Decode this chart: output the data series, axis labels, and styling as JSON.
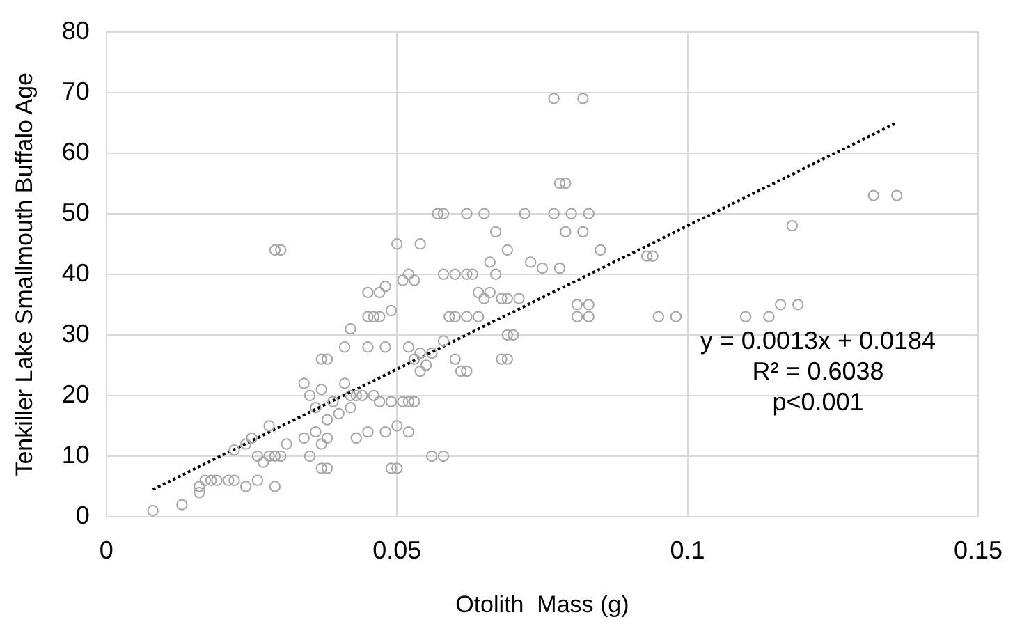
{
  "chart_data": {
    "type": "scatter",
    "xlabel": "Otolith  Mass (g)",
    "ylabel": "Tenkiller Lake Smallmouth Buffalo Age",
    "xlim": [
      0,
      0.15
    ],
    "xticks": [
      0,
      0.05,
      0.1,
      0.15
    ],
    "ylim": [
      0,
      80
    ],
    "yticks": [
      0,
      10,
      20,
      30,
      40,
      50,
      60,
      70,
      80
    ],
    "grid": true,
    "legend": false,
    "marker": "circle",
    "annotations": [
      "y = 0.0013x + 0.0184",
      "R² = 0.6038",
      "p<0.001"
    ],
    "series": [
      {
        "color": "#a6a6a6",
        "x": [
          0.008,
          0.013,
          0.029,
          0.03,
          0.016,
          0.016,
          0.017,
          0.018,
          0.019,
          0.021,
          0.022,
          0.024,
          0.026,
          0.029,
          0.026,
          0.027,
          0.028,
          0.029,
          0.03,
          0.022,
          0.024,
          0.025,
          0.031,
          0.028,
          0.035,
          0.037,
          0.038,
          0.034,
          0.036,
          0.037,
          0.038,
          0.034,
          0.035,
          0.036,
          0.037,
          0.038,
          0.039,
          0.04,
          0.041,
          0.042,
          0.043,
          0.037,
          0.038,
          0.041,
          0.042,
          0.045,
          0.047,
          0.048,
          0.045,
          0.046,
          0.047,
          0.049,
          0.045,
          0.048,
          0.042,
          0.044,
          0.046,
          0.047,
          0.043,
          0.045,
          0.048,
          0.049,
          0.051,
          0.052,
          0.053,
          0.049,
          0.05,
          0.056,
          0.058,
          0.05,
          0.052,
          0.05,
          0.054,
          0.057,
          0.058,
          0.062,
          0.052,
          0.053,
          0.051,
          0.058,
          0.052,
          0.053,
          0.054,
          0.056,
          0.058,
          0.06,
          0.059,
          0.077,
          0.082,
          0.078,
          0.079,
          0.065,
          0.072,
          0.077,
          0.08,
          0.083,
          0.067,
          0.079,
          0.082,
          0.069,
          0.085,
          0.093,
          0.094,
          0.066,
          0.073,
          0.075,
          0.078,
          0.06,
          0.062,
          0.063,
          0.067,
          0.064,
          0.065,
          0.066,
          0.068,
          0.069,
          0.071,
          0.081,
          0.083,
          0.081,
          0.083,
          0.095,
          0.098,
          0.06,
          0.062,
          0.064,
          0.069,
          0.07,
          0.068,
          0.069,
          0.061,
          0.062,
          0.054,
          0.055,
          0.132,
          0.136,
          0.118,
          0.11,
          0.114,
          0.116,
          0.119
        ],
        "values": [
          1,
          2,
          44,
          44,
          4,
          5,
          6,
          6,
          6,
          6,
          6,
          5,
          6,
          5,
          10,
          9,
          10,
          10,
          10,
          11,
          12,
          13,
          12,
          15,
          10,
          8,
          8,
          13,
          14,
          12,
          13,
          22,
          20,
          18,
          21,
          16,
          19,
          17,
          22,
          18,
          20,
          26,
          26,
          28,
          31,
          37,
          37,
          38,
          33,
          33,
          33,
          34,
          28,
          28,
          20,
          20,
          20,
          19,
          13,
          14,
          14,
          19,
          19,
          19,
          19,
          8,
          8,
          10,
          10,
          15,
          14,
          45,
          45,
          50,
          50,
          50,
          40,
          39,
          39,
          40,
          28,
          26,
          27,
          27,
          29,
          26,
          33,
          69,
          69,
          55,
          55,
          50,
          50,
          50,
          50,
          50,
          47,
          47,
          47,
          44,
          44,
          43,
          43,
          42,
          42,
          41,
          41,
          40,
          40,
          40,
          40,
          37,
          36,
          37,
          36,
          36,
          36,
          35,
          35,
          33,
          33,
          33,
          33,
          33,
          33,
          33,
          30,
          30,
          26,
          26,
          24,
          24,
          24,
          25,
          53,
          53,
          48,
          33,
          33,
          35,
          35
        ]
      },
      {
        "type": "line",
        "color": "#000000",
        "line_style": "dotted",
        "marker": "none",
        "x": [
          0.008,
          0.136
        ],
        "values": [
          4.5,
          65
        ]
      }
    ]
  }
}
